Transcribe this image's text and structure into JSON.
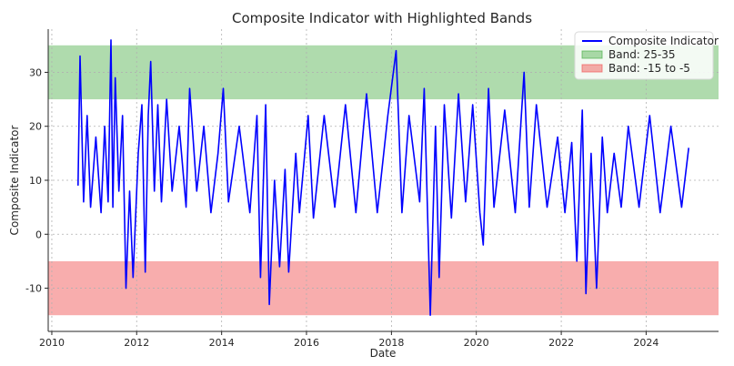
{
  "chart_data": {
    "type": "line",
    "title": "Composite Indicator with Highlighted Bands",
    "xlabel": "Date",
    "ylabel": "Composite Indicator",
    "xlim": [
      "2009-12-01",
      "2025-09-15"
    ],
    "ylim": [
      -18,
      38
    ],
    "x_ticks": [
      "2010",
      "2012",
      "2014",
      "2016",
      "2018",
      "2020",
      "2022",
      "2024"
    ],
    "y_ticks": [
      -10,
      0,
      10,
      20,
      30
    ],
    "grid": true,
    "legend_position": "top-right",
    "bands": [
      {
        "name": "Band: 25-35",
        "from": 25,
        "to": 35,
        "color": "#4daf4a",
        "opacity": 0.45
      },
      {
        "name": "Band: -15 to -5",
        "from": -15,
        "to": -5,
        "color": "#f15b5b",
        "opacity": 0.5
      }
    ],
    "series": [
      {
        "name": "Composite Indicator",
        "color": "#0000ff",
        "points": [
          [
            "2010-08-15",
            9
          ],
          [
            "2010-09-01",
            33
          ],
          [
            "2010-10-01",
            6
          ],
          [
            "2010-11-01",
            22
          ],
          [
            "2010-12-01",
            5
          ],
          [
            "2011-01-15",
            18
          ],
          [
            "2011-03-01",
            4
          ],
          [
            "2011-04-01",
            20
          ],
          [
            "2011-05-01",
            6
          ],
          [
            "2011-05-25",
            36
          ],
          [
            "2011-06-10",
            5
          ],
          [
            "2011-07-01",
            29
          ],
          [
            "2011-08-01",
            8
          ],
          [
            "2011-09-01",
            22
          ],
          [
            "2011-10-01",
            -10
          ],
          [
            "2011-11-01",
            8
          ],
          [
            "2011-12-01",
            -8
          ],
          [
            "2012-01-15",
            15
          ],
          [
            "2012-02-15",
            24
          ],
          [
            "2012-03-15",
            -7
          ],
          [
            "2012-04-10",
            22
          ],
          [
            "2012-05-01",
            32
          ],
          [
            "2012-06-01",
            8
          ],
          [
            "2012-07-01",
            24
          ],
          [
            "2012-08-01",
            6
          ],
          [
            "2012-09-15",
            25
          ],
          [
            "2012-11-01",
            8
          ],
          [
            "2013-01-01",
            20
          ],
          [
            "2013-03-01",
            5
          ],
          [
            "2013-04-01",
            27
          ],
          [
            "2013-06-01",
            8
          ],
          [
            "2013-08-01",
            20
          ],
          [
            "2013-10-01",
            4
          ],
          [
            "2013-12-01",
            15
          ],
          [
            "2014-01-15",
            27
          ],
          [
            "2014-03-01",
            6
          ],
          [
            "2014-06-01",
            20
          ],
          [
            "2014-09-01",
            4
          ],
          [
            "2014-11-01",
            22
          ],
          [
            "2014-12-01",
            -8
          ],
          [
            "2015-01-15",
            24
          ],
          [
            "2015-02-15",
            -13
          ],
          [
            "2015-04-01",
            10
          ],
          [
            "2015-05-15",
            -6
          ],
          [
            "2015-07-01",
            12
          ],
          [
            "2015-08-01",
            -7
          ],
          [
            "2015-10-01",
            15
          ],
          [
            "2015-11-01",
            4
          ],
          [
            "2016-01-15",
            22
          ],
          [
            "2016-03-01",
            3
          ],
          [
            "2016-06-01",
            22
          ],
          [
            "2016-09-01",
            5
          ],
          [
            "2016-12-01",
            24
          ],
          [
            "2017-03-01",
            4
          ],
          [
            "2017-06-01",
            26
          ],
          [
            "2017-09-01",
            4
          ],
          [
            "2017-12-01",
            22
          ],
          [
            "2018-02-10",
            34
          ],
          [
            "2018-04-01",
            4
          ],
          [
            "2018-06-01",
            22
          ],
          [
            "2018-09-01",
            6
          ],
          [
            "2018-10-10",
            27
          ],
          [
            "2018-12-01",
            -15
          ],
          [
            "2019-01-15",
            20
          ],
          [
            "2019-02-15",
            -8
          ],
          [
            "2019-04-01",
            24
          ],
          [
            "2019-06-01",
            3
          ],
          [
            "2019-08-01",
            26
          ],
          [
            "2019-10-01",
            6
          ],
          [
            "2019-12-01",
            24
          ],
          [
            "2020-02-01",
            4
          ],
          [
            "2020-03-01",
            -2
          ],
          [
            "2020-04-15",
            27
          ],
          [
            "2020-06-01",
            5
          ],
          [
            "2020-09-01",
            23
          ],
          [
            "2020-12-01",
            4
          ],
          [
            "2021-02-15",
            30
          ],
          [
            "2021-04-01",
            5
          ],
          [
            "2021-06-01",
            24
          ],
          [
            "2021-09-01",
            5
          ],
          [
            "2021-12-01",
            18
          ],
          [
            "2022-02-01",
            4
          ],
          [
            "2022-04-01",
            17
          ],
          [
            "2022-05-15",
            -5
          ],
          [
            "2022-07-01",
            23
          ],
          [
            "2022-08-01",
            -11
          ],
          [
            "2022-09-15",
            15
          ],
          [
            "2022-11-01",
            -10
          ],
          [
            "2022-12-20",
            18
          ],
          [
            "2023-02-01",
            4
          ],
          [
            "2023-04-01",
            15
          ],
          [
            "2023-06-01",
            5
          ],
          [
            "2023-08-01",
            20
          ],
          [
            "2023-11-01",
            5
          ],
          [
            "2024-02-01",
            22
          ],
          [
            "2024-05-01",
            4
          ],
          [
            "2024-08-01",
            20
          ],
          [
            "2024-11-01",
            5
          ],
          [
            "2025-01-01",
            16
          ]
        ]
      }
    ]
  }
}
